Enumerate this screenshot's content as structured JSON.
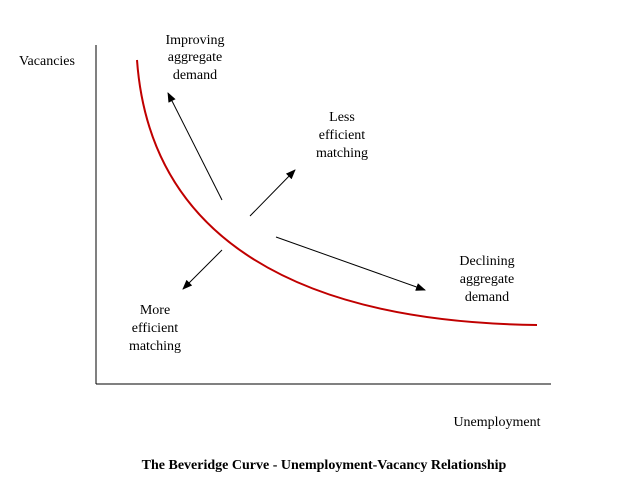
{
  "y_axis_label": "Vacancies",
  "x_axis_label": "Unemployment",
  "annotations": {
    "improving_demand": [
      "Improving",
      "aggregate",
      "demand"
    ],
    "less_efficient": [
      "Less",
      "efficient",
      "matching"
    ],
    "declining_demand": [
      "Declining",
      "aggregate",
      "demand"
    ],
    "more_efficient": [
      "More",
      "efficient",
      "matching"
    ]
  },
  "caption": "The Beveridge Curve - Unemployment-Vacancy Relationship"
}
